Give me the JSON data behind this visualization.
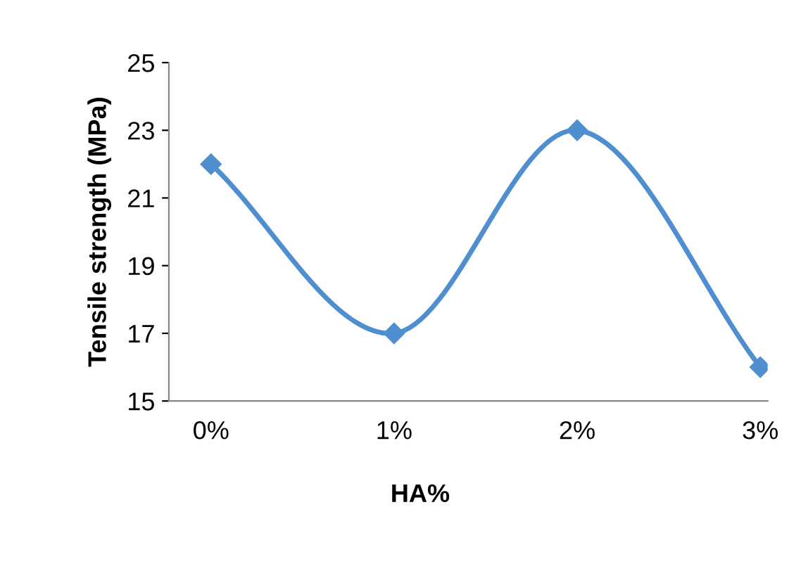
{
  "chart_data": {
    "type": "line",
    "xlabel": "HA%",
    "ylabel": "Tensile strength (MPa)",
    "categories": [
      "0%",
      "1%",
      "2%",
      "3%"
    ],
    "series": [
      {
        "color": "#4f8fd0",
        "values": [
          22,
          17,
          23,
          16
        ]
      }
    ],
    "ylim": [
      15,
      25
    ],
    "yticks": [
      15,
      17,
      19,
      21,
      23,
      25
    ],
    "grid": false,
    "legend": false,
    "marker": "diamond",
    "line_style": "solid"
  }
}
